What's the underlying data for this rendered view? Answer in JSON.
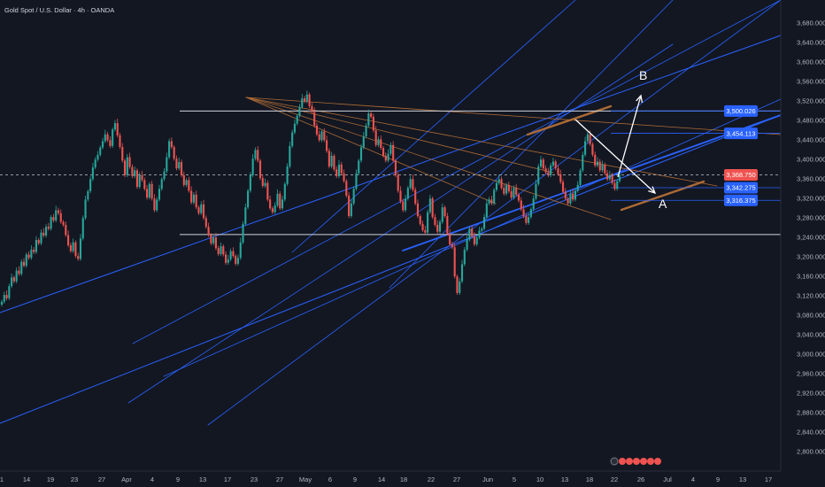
{
  "header": {
    "title": "Gold Spot / U.S. Dollar · 4h · OANDA"
  },
  "colors": {
    "background": "#131722",
    "up": "#26a69a",
    "down": "#ef5350",
    "trendline": "#2962ff",
    "fan_line": "#ad6b35",
    "horizontal": "#d1d4dc",
    "price_badge": "#2962ff",
    "last_price_badge": "#ef5350"
  },
  "annotations": {
    "label_a": "A",
    "label_b": "B"
  },
  "chart_data": {
    "type": "candlestick",
    "title": "Gold Spot / U.S. Dollar · 4h · OANDA",
    "timeframe": "4h",
    "ylim": [
      2780,
      3680
    ],
    "y_ticks": [
      "2,800.000",
      "2,840.000",
      "2,880.000",
      "2,920.000",
      "2,960.000",
      "3,000.000",
      "3,040.000",
      "3,080.000",
      "3,120.000",
      "3,160.000",
      "3,200.000",
      "3,240.000",
      "3,280.000",
      "3,320.000",
      "3,360.000",
      "3,400.000",
      "3,440.000",
      "3,480.000",
      "3,520.000",
      "3,560.000",
      "3,600.000",
      "3,640.000",
      "3,680.000"
    ],
    "x_ticks": [
      "1",
      "14",
      "19",
      "23",
      "27",
      "Apr",
      "4",
      "9",
      "13",
      "17",
      "23",
      "27",
      "May",
      "6",
      "9",
      "14",
      "18",
      "22",
      "27",
      "Jun",
      "5",
      "10",
      "13",
      "18",
      "22",
      "26",
      "Jul",
      "4",
      "9",
      "13",
      "17"
    ],
    "price_levels": [
      {
        "label": "3,500.026",
        "value": 3500.026
      },
      {
        "label": "3,454.113",
        "value": 3454.113
      },
      {
        "label": "3,368.750",
        "value": 3368.75,
        "current": true
      },
      {
        "label": "3,342.275",
        "value": 3342.275
      },
      {
        "label": "3,316.375",
        "value": 3316.375
      }
    ],
    "horizontal_lines": [
      3500,
      3246
    ],
    "price_path": [
      3108,
      3122,
      3115,
      3140,
      3158,
      3150,
      3172,
      3165,
      3190,
      3182,
      3205,
      3198,
      3215,
      3210,
      3235,
      3228,
      3250,
      3244,
      3262,
      3258,
      3282,
      3275,
      3296,
      3290,
      3272,
      3266,
      3245,
      3224,
      3212,
      3230,
      3202,
      3196,
      3238,
      3280,
      3318,
      3335,
      3360,
      3384,
      3400,
      3410,
      3425,
      3438,
      3452,
      3440,
      3428,
      3462,
      3475,
      3450,
      3426,
      3398,
      3368,
      3405,
      3385,
      3366,
      3378,
      3344,
      3368,
      3358,
      3340,
      3322,
      3350,
      3320,
      3296,
      3318,
      3340,
      3360,
      3376,
      3405,
      3438,
      3426,
      3402,
      3382,
      3395,
      3368,
      3348,
      3358,
      3336,
      3312,
      3328,
      3302,
      3290,
      3308,
      3280,
      3262,
      3245,
      3228,
      3240,
      3218,
      3206,
      3222,
      3205,
      3188,
      3195,
      3212,
      3202,
      3186,
      3198,
      3230,
      3268,
      3302,
      3336,
      3368,
      3402,
      3420,
      3398,
      3362,
      3346,
      3352,
      3318,
      3300,
      3292,
      3306,
      3330,
      3300,
      3318,
      3350,
      3386,
      3428,
      3456,
      3474,
      3490,
      3508,
      3526,
      3520,
      3534,
      3510,
      3498,
      3470,
      3452,
      3440,
      3458,
      3440,
      3418,
      3386,
      3408,
      3380,
      3366,
      3390,
      3372,
      3356,
      3326,
      3284,
      3310,
      3340,
      3372,
      3398,
      3425,
      3448,
      3470,
      3495,
      3488,
      3460,
      3430,
      3442,
      3424,
      3408,
      3398,
      3412,
      3430,
      3398,
      3368,
      3336,
      3314,
      3296,
      3320,
      3342,
      3360,
      3338,
      3310,
      3284,
      3268,
      3255,
      3250,
      3292,
      3320,
      3282,
      3266,
      3252,
      3272,
      3302,
      3284,
      3248,
      3226,
      3220,
      3160,
      3126,
      3150,
      3185,
      3215,
      3236,
      3258,
      3242,
      3226,
      3240,
      3254,
      3258,
      3282,
      3310,
      3318,
      3310,
      3338,
      3352,
      3360,
      3342,
      3330,
      3348,
      3335,
      3322,
      3342,
      3328,
      3316,
      3298,
      3284,
      3270,
      3282,
      3298,
      3320,
      3350,
      3386,
      3400,
      3382,
      3374,
      3368,
      3388,
      3396,
      3382,
      3370,
      3354,
      3334,
      3320,
      3310,
      3330,
      3318,
      3336,
      3348,
      3378,
      3410,
      3438,
      3452,
      3432,
      3410,
      3388,
      3396,
      3378,
      3390,
      3372,
      3360,
      3368,
      3352,
      3340,
      3356,
      3368
    ]
  }
}
